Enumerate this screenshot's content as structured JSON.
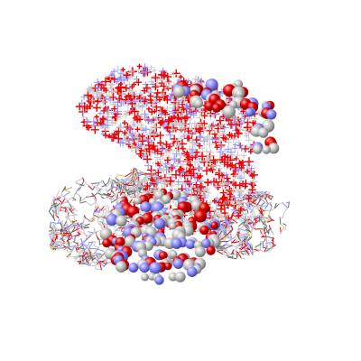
{
  "scene": {
    "subject": "molecular-structure-rendering",
    "background_color": "#ffffff",
    "styles": [
      "crosses",
      "spacefill",
      "wireframe"
    ],
    "element_colors": {
      "carbon": "#c8c8c8",
      "oxygen": "#f00000",
      "nitrogen": "#8f8fff",
      "sulfur": "#ffc832",
      "bond": "#6e6e6e"
    }
  }
}
